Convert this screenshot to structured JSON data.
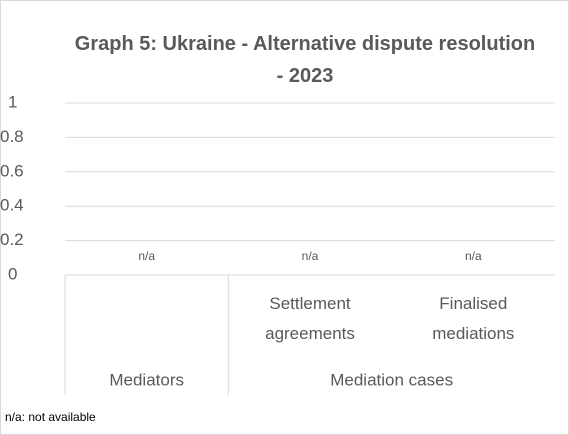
{
  "chart_data": {
    "type": "bar",
    "title": "Graph 5: Ukraine - Alternative dispute resolution - 2023",
    "groups": [
      {
        "name": "Mediators",
        "categories": [
          null
        ]
      },
      {
        "name": "Mediation cases",
        "categories": [
          "Settlement agreements",
          "Finalised mediations"
        ]
      }
    ],
    "values": [
      null,
      null,
      null
    ],
    "value_labels": [
      "n/a",
      "n/a",
      "n/a"
    ],
    "ylim": [
      0,
      1
    ],
    "yticks": [
      0,
      0.2,
      0.4,
      0.6,
      0.8,
      1
    ],
    "grid": true,
    "note": "n/a: not available"
  }
}
